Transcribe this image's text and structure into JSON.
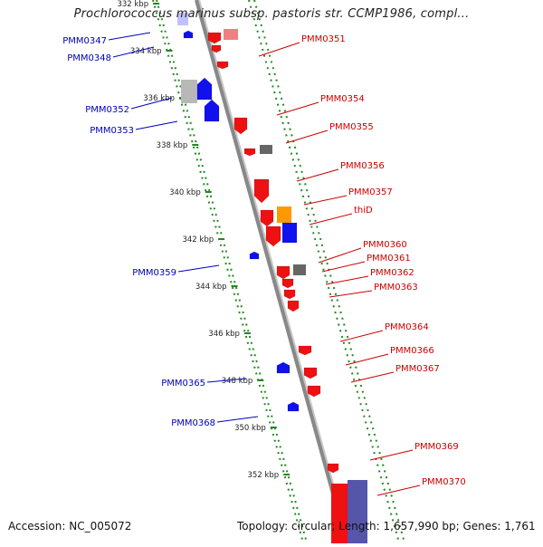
{
  "title": "Prochlorococcus marinus subsp. pastoris str. CCMP1986, compl...",
  "footer": {
    "accession": "Accession: NC_005072",
    "summary": "Topology: circular; Length: 1,657,990 bp; Genes: 1,761"
  },
  "colors": {
    "forward_label": "#0000bb",
    "reverse_label": "#cc0000",
    "tick": "#228822",
    "backbone": "#888888"
  },
  "ticks": [
    {
      "label": "332 kbp",
      "kbp": 332
    },
    {
      "label": "334 kbp",
      "kbp": 334
    },
    {
      "label": "336 kbp",
      "kbp": 336
    },
    {
      "label": "338 kbp",
      "kbp": 338
    },
    {
      "label": "340 kbp",
      "kbp": 340
    },
    {
      "label": "342 kbp",
      "kbp": 342
    },
    {
      "label": "344 kbp",
      "kbp": 344
    },
    {
      "label": "346 kbp",
      "kbp": 346
    },
    {
      "label": "348 kbp",
      "kbp": 348
    },
    {
      "label": "350 kbp",
      "kbp": 350
    },
    {
      "label": "352 kbp",
      "kbp": 352
    }
  ],
  "genes_forward": [
    {
      "label": "PMM0347"
    },
    {
      "label": "PMM0348"
    },
    {
      "label": "PMM0352"
    },
    {
      "label": "PMM0353"
    },
    {
      "label": "PMM0359"
    },
    {
      "label": "PMM0365"
    },
    {
      "label": "PMM0368"
    }
  ],
  "genes_reverse": [
    {
      "label": "PMM0351"
    },
    {
      "label": "PMM0354"
    },
    {
      "label": "PMM0355"
    },
    {
      "label": "PMM0356"
    },
    {
      "label": "PMM0357"
    },
    {
      "label": "thiD"
    },
    {
      "label": "PMM0360"
    },
    {
      "label": "PMM0361"
    },
    {
      "label": "PMM0362"
    },
    {
      "label": "PMM0363"
    },
    {
      "label": "PMM0364"
    },
    {
      "label": "PMM0366"
    },
    {
      "label": "PMM0367"
    },
    {
      "label": "PMM0369"
    },
    {
      "label": "PMM0370"
    }
  ]
}
